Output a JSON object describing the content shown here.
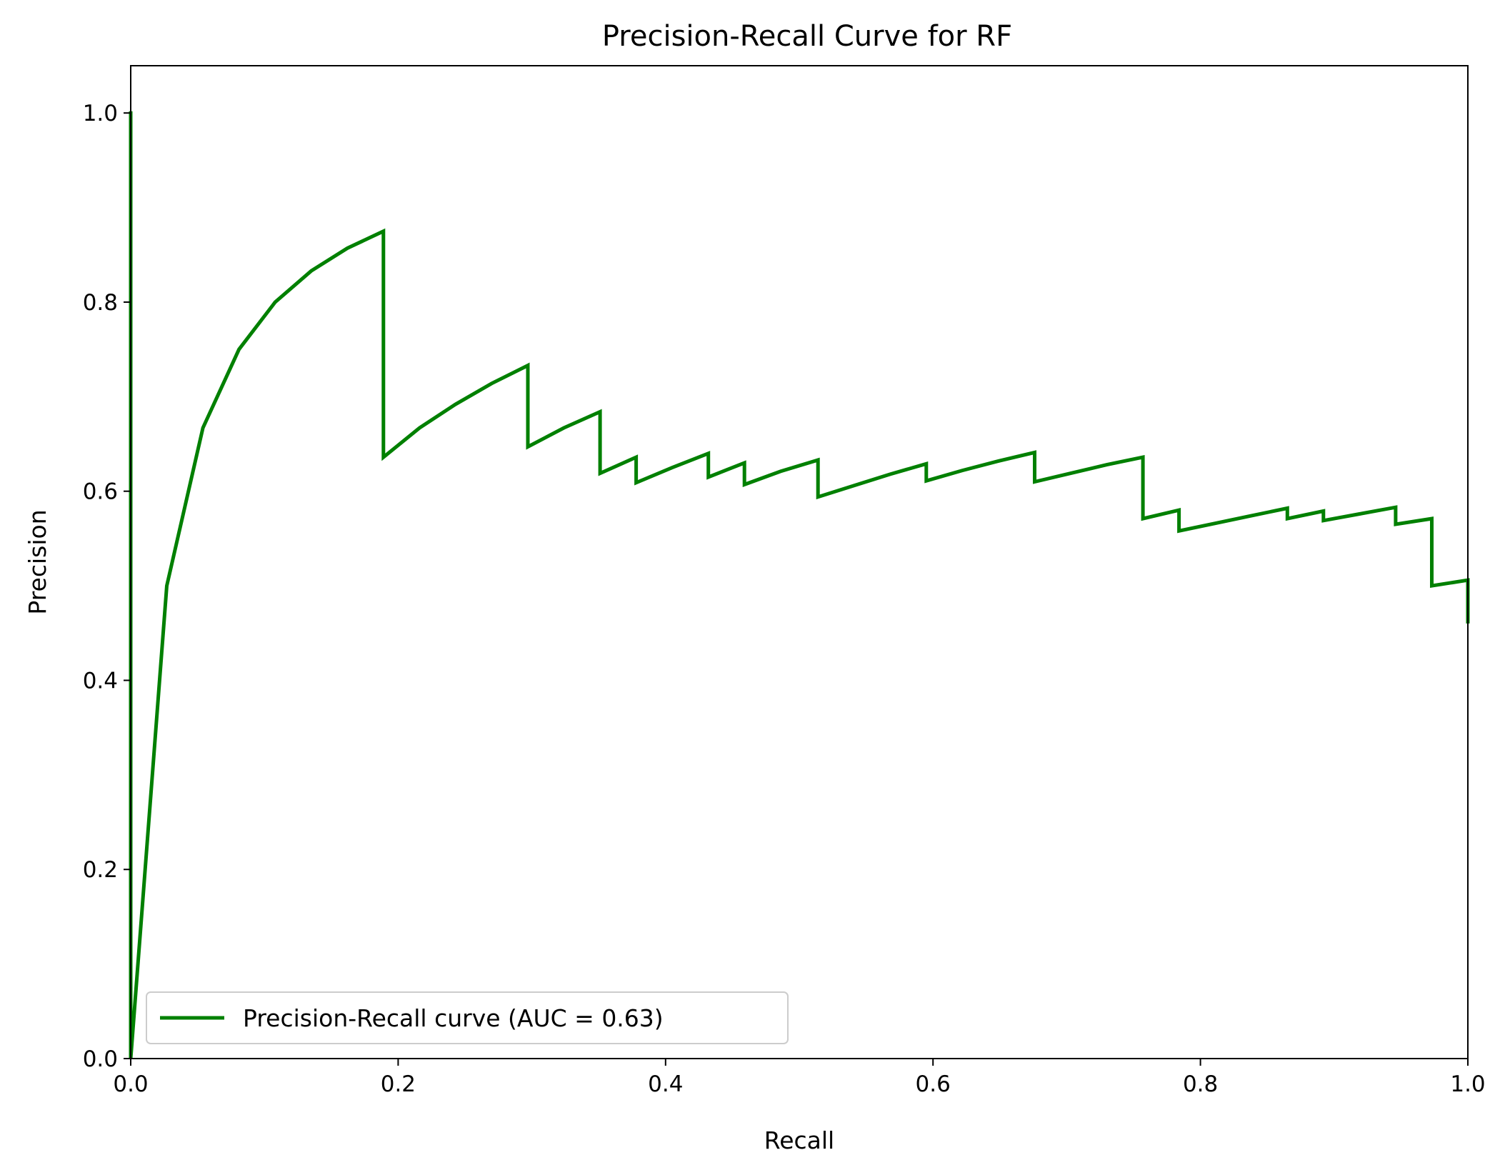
{
  "chart_data": {
    "type": "line",
    "title": "Precision-Recall Curve for RF",
    "xlabel": "Recall",
    "ylabel": "Precision",
    "xlim": [
      0.0,
      1.0
    ],
    "ylim": [
      0.0,
      1.05
    ],
    "xticks": [
      "0.0",
      "0.2",
      "0.4",
      "0.6",
      "0.8",
      "1.0"
    ],
    "yticks": [
      "0.0",
      "0.2",
      "0.4",
      "0.6",
      "0.8",
      "1.0"
    ],
    "grid": false,
    "legend_position": "lower-left",
    "colors": {
      "series": "#008000",
      "axes": "#000000",
      "background": "#ffffff"
    },
    "series": [
      {
        "name": "Precision-Recall curve (AUC = 0.63)",
        "x": [
          0.0,
          0.0,
          0.0,
          0.027,
          0.054,
          0.081,
          0.108,
          0.135,
          0.162,
          0.189,
          0.189,
          0.216,
          0.243,
          0.27,
          0.297,
          0.297,
          0.324,
          0.351,
          0.351,
          0.378,
          0.378,
          0.405,
          0.432,
          0.432,
          0.459,
          0.459,
          0.486,
          0.514,
          0.514,
          0.541,
          0.568,
          0.595,
          0.595,
          0.622,
          0.649,
          0.676,
          0.676,
          0.703,
          0.73,
          0.757,
          0.757,
          0.784,
          0.784,
          0.811,
          0.838,
          0.865,
          0.865,
          0.892,
          0.892,
          0.919,
          0.946,
          0.946,
          0.973,
          0.973,
          1.0,
          1.0
        ],
        "y": [
          1.0,
          0.0,
          0.0,
          0.5,
          0.667,
          0.75,
          0.8,
          0.833,
          0.857,
          0.875,
          0.636,
          0.667,
          0.692,
          0.714,
          0.733,
          0.647,
          0.667,
          0.684,
          0.619,
          0.636,
          0.609,
          0.625,
          0.64,
          0.615,
          0.63,
          0.607,
          0.621,
          0.633,
          0.594,
          0.606,
          0.618,
          0.629,
          0.611,
          0.622,
          0.632,
          0.641,
          0.61,
          0.619,
          0.628,
          0.636,
          0.571,
          0.58,
          0.558,
          0.566,
          0.574,
          0.582,
          0.571,
          0.579,
          0.569,
          0.576,
          0.583,
          0.565,
          0.571,
          0.5,
          0.506,
          0.462
        ]
      }
    ]
  }
}
